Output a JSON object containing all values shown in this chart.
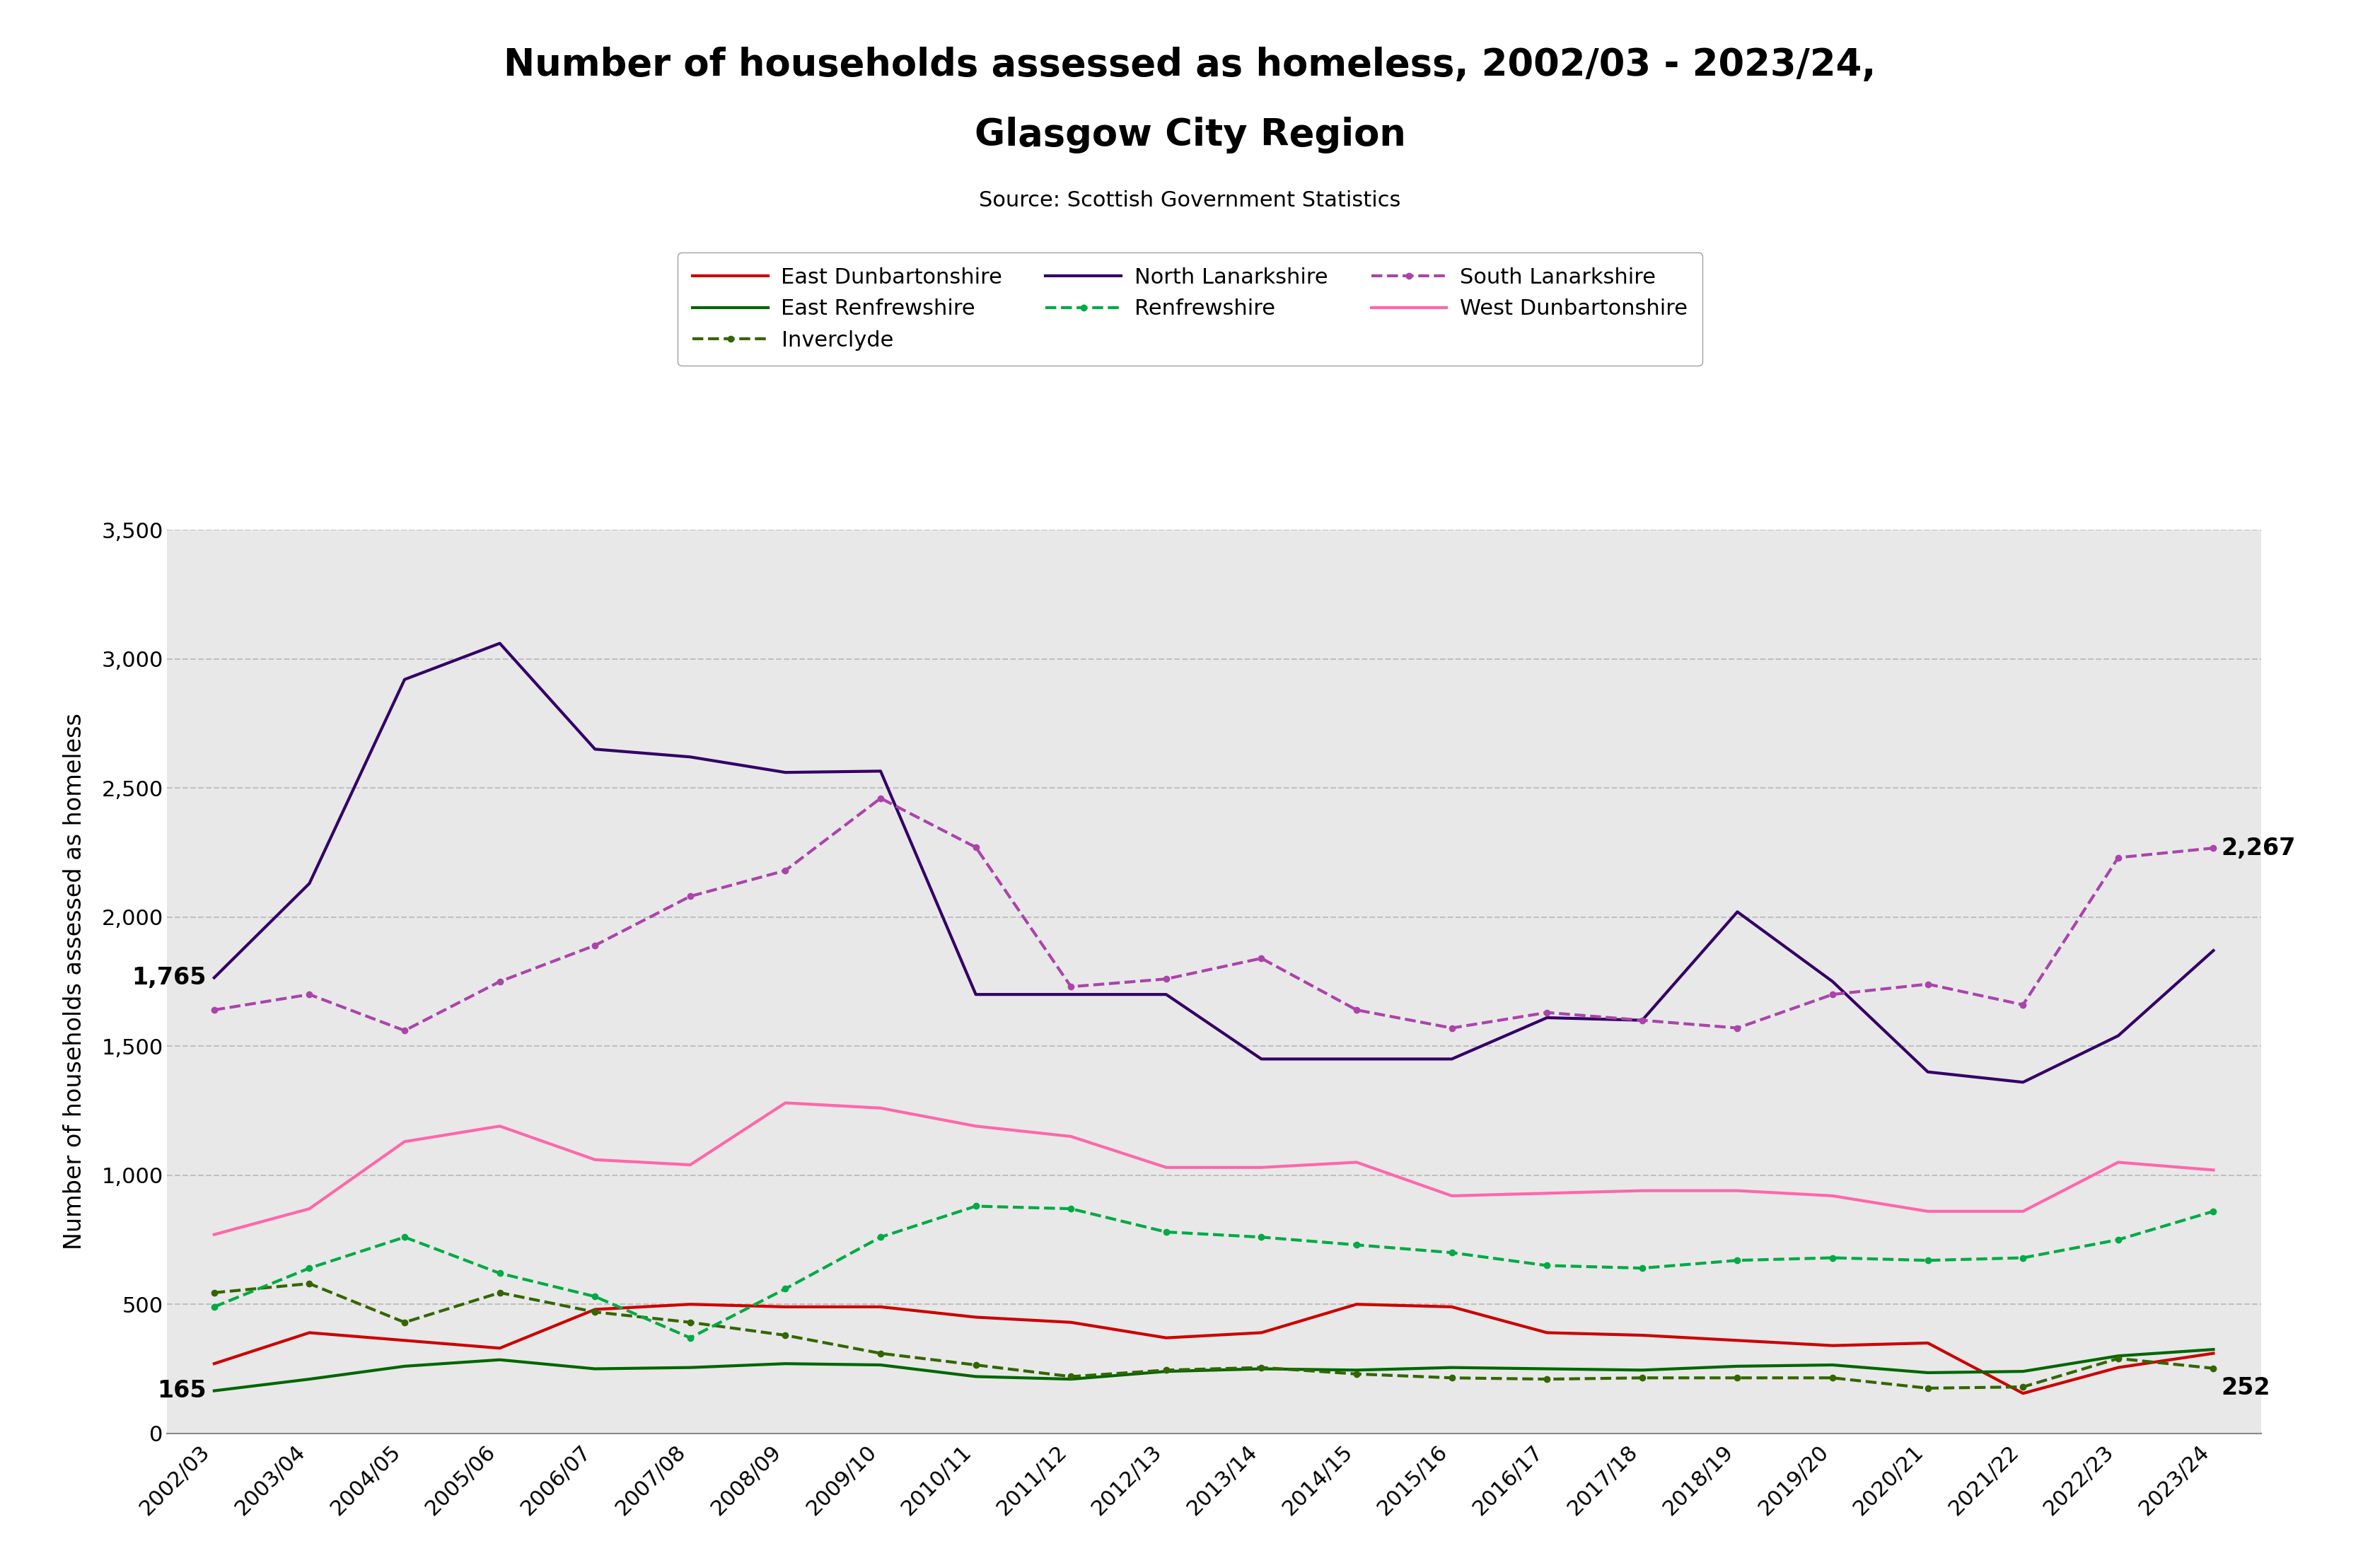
{
  "title_line1": "Number of households assessed as homeless, 2002/03 - 2023/24,",
  "title_line2": "Glasgow City Region",
  "subtitle": "Source: Scottish Government Statistics",
  "ylabel": "Number of households assessed as homeless",
  "years": [
    "2002/03",
    "2003/04",
    "2004/05",
    "2005/06",
    "2006/07",
    "2007/08",
    "2008/09",
    "2009/10",
    "2010/11",
    "2011/12",
    "2012/13",
    "2013/14",
    "2014/15",
    "2015/16",
    "2016/17",
    "2017/18",
    "2018/19",
    "2019/20",
    "2020/21",
    "2021/22",
    "2022/23",
    "2023/24"
  ],
  "series": [
    {
      "name": "East Dunbartonshire",
      "values": [
        270,
        390,
        360,
        330,
        480,
        500,
        490,
        490,
        450,
        430,
        370,
        390,
        500,
        490,
        390,
        380,
        360,
        340,
        350,
        155,
        255,
        310
      ],
      "color": "#cc0000",
      "linestyle": "solid",
      "linewidth": 3.0,
      "marker": null,
      "markersize": 0
    },
    {
      "name": "East Renfrewshire",
      "values": [
        165,
        210,
        260,
        285,
        250,
        255,
        270,
        265,
        220,
        210,
        240,
        250,
        245,
        255,
        250,
        245,
        260,
        265,
        235,
        240,
        300,
        325
      ],
      "color": "#006600",
      "linestyle": "solid",
      "linewidth": 3.0,
      "marker": null,
      "markersize": 0
    },
    {
      "name": "Inverclyde",
      "values": [
        545,
        580,
        430,
        545,
        470,
        430,
        380,
        310,
        265,
        220,
        245,
        255,
        230,
        215,
        210,
        215,
        215,
        215,
        175,
        180,
        290,
        252
      ],
      "color": "#336600",
      "linestyle": "dashed",
      "linewidth": 3.0,
      "marker": "o",
      "markersize": 6
    },
    {
      "name": "North Lanarkshire",
      "values": [
        1765,
        2130,
        2920,
        3060,
        2650,
        2620,
        2560,
        2565,
        1700,
        1700,
        1700,
        1450,
        1450,
        1450,
        1610,
        1600,
        2020,
        1750,
        1400,
        1360,
        1540,
        1870
      ],
      "color": "#330066",
      "linestyle": "solid",
      "linewidth": 3.0,
      "marker": null,
      "markersize": 0
    },
    {
      "name": "Renfrewshire",
      "values": [
        490,
        640,
        760,
        620,
        530,
        370,
        560,
        760,
        880,
        870,
        780,
        760,
        730,
        700,
        650,
        640,
        670,
        680,
        670,
        680,
        750,
        860
      ],
      "color": "#00aa44",
      "linestyle": "dashed",
      "linewidth": 3.0,
      "marker": "o",
      "markersize": 6
    },
    {
      "name": "South Lanarkshire",
      "values": [
        1640,
        1700,
        1560,
        1750,
        1890,
        2080,
        2180,
        2460,
        2270,
        1730,
        1760,
        1840,
        1640,
        1570,
        1630,
        1600,
        1570,
        1700,
        1740,
        1660,
        2230,
        2267
      ],
      "color": "#aa44aa",
      "linestyle": "dashed",
      "linewidth": 3.0,
      "marker": "o",
      "markersize": 6
    },
    {
      "name": "West Dunbartonshire",
      "values": [
        770,
        870,
        1130,
        1190,
        1060,
        1040,
        1280,
        1260,
        1190,
        1150,
        1030,
        1030,
        1050,
        920,
        930,
        940,
        940,
        920,
        860,
        860,
        1050,
        1020
      ],
      "color": "#ff66aa",
      "linestyle": "solid",
      "linewidth": 3.0,
      "marker": null,
      "markersize": 0
    }
  ],
  "ylim": [
    0,
    3500
  ],
  "yticks": [
    0,
    500,
    1000,
    1500,
    2000,
    2500,
    3000,
    3500
  ],
  "bg_color": "#e8e8e8",
  "grid_color": "#c0c0c0",
  "title_fontsize": 38,
  "subtitle_fontsize": 22,
  "ylabel_fontsize": 24,
  "tick_fontsize": 22,
  "legend_fontsize": 22,
  "annot_fontsize": 24
}
